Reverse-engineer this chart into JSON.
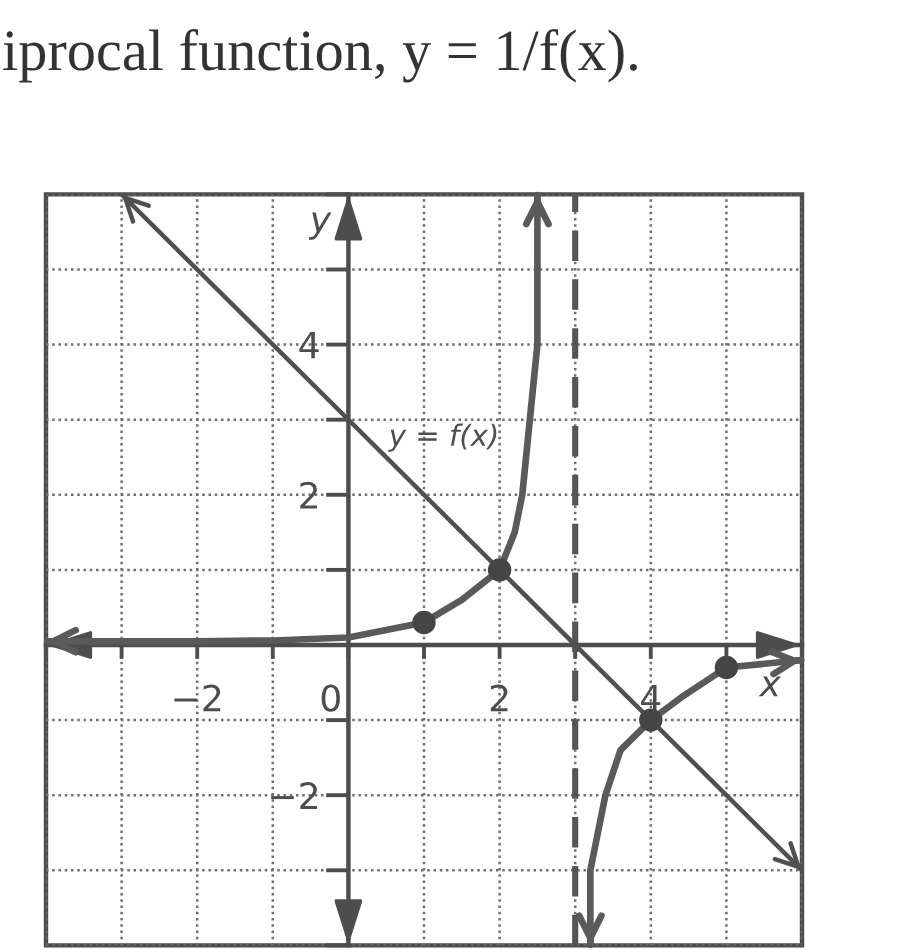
{
  "chart_data": {
    "type": "line",
    "title": "iprocal function, y = 1/f(x).",
    "xlabel": "x",
    "ylabel": "y",
    "xlim": [
      -4,
      6
    ],
    "ylim": [
      -4,
      6
    ],
    "xticks": [
      {
        "value": -4,
        "label": null
      },
      {
        "value": -3,
        "label": null
      },
      {
        "value": -2,
        "label": "−2"
      },
      {
        "value": -1,
        "label": null
      },
      {
        "value": 0,
        "label": "0"
      },
      {
        "value": 1,
        "label": null
      },
      {
        "value": 2,
        "label": "2"
      },
      {
        "value": 3,
        "label": null
      },
      {
        "value": 4,
        "label": "4"
      },
      {
        "value": 5,
        "label": null
      },
      {
        "value": 6,
        "label": null
      }
    ],
    "yticks": [
      {
        "value": -4,
        "label": null
      },
      {
        "value": -3,
        "label": null
      },
      {
        "value": -2,
        "label": "−2"
      },
      {
        "value": -1,
        "label": null
      },
      {
        "value": 0,
        "label": null
      },
      {
        "value": 1,
        "label": null
      },
      {
        "value": 2,
        "label": "2"
      },
      {
        "value": 3,
        "label": null
      },
      {
        "value": 4,
        "label": "4"
      },
      {
        "value": 5,
        "label": null
      },
      {
        "value": 6,
        "label": null
      }
    ],
    "grid": true,
    "ref_lines": [
      {
        "axis": "x",
        "value": 3,
        "line_style": "dashed",
        "color": "#555555"
      }
    ],
    "series": [
      {
        "name": "y = f(x)",
        "color": "#505050",
        "x": [
          -3,
          6
        ],
        "values": [
          6,
          -3
        ]
      },
      {
        "color": "#5a5a5a",
        "x": [
          -4,
          -2,
          -1,
          0,
          0.5,
          1,
          1.5,
          2,
          2.2,
          2.3,
          2.4,
          2.5,
          2.5,
          2.5,
          3,
          3.2,
          3.2,
          3.4,
          3.6,
          4,
          4.4,
          5,
          6
        ],
        "values": [
          0.05,
          0.05,
          0.06,
          0.1,
          0.2,
          0.3,
          0.6,
          1,
          1.5,
          2,
          3,
          4,
          5,
          6,
          null,
          -4,
          -3,
          -2,
          -1.4,
          -1,
          -0.7,
          -0.3,
          -0.2
        ]
      },
      {
        "type": "scatter",
        "color": "#454545",
        "marker": "circle",
        "x": [
          1,
          2,
          4,
          5
        ],
        "values": [
          0.3,
          1,
          -1,
          -0.3
        ]
      }
    ]
  }
}
